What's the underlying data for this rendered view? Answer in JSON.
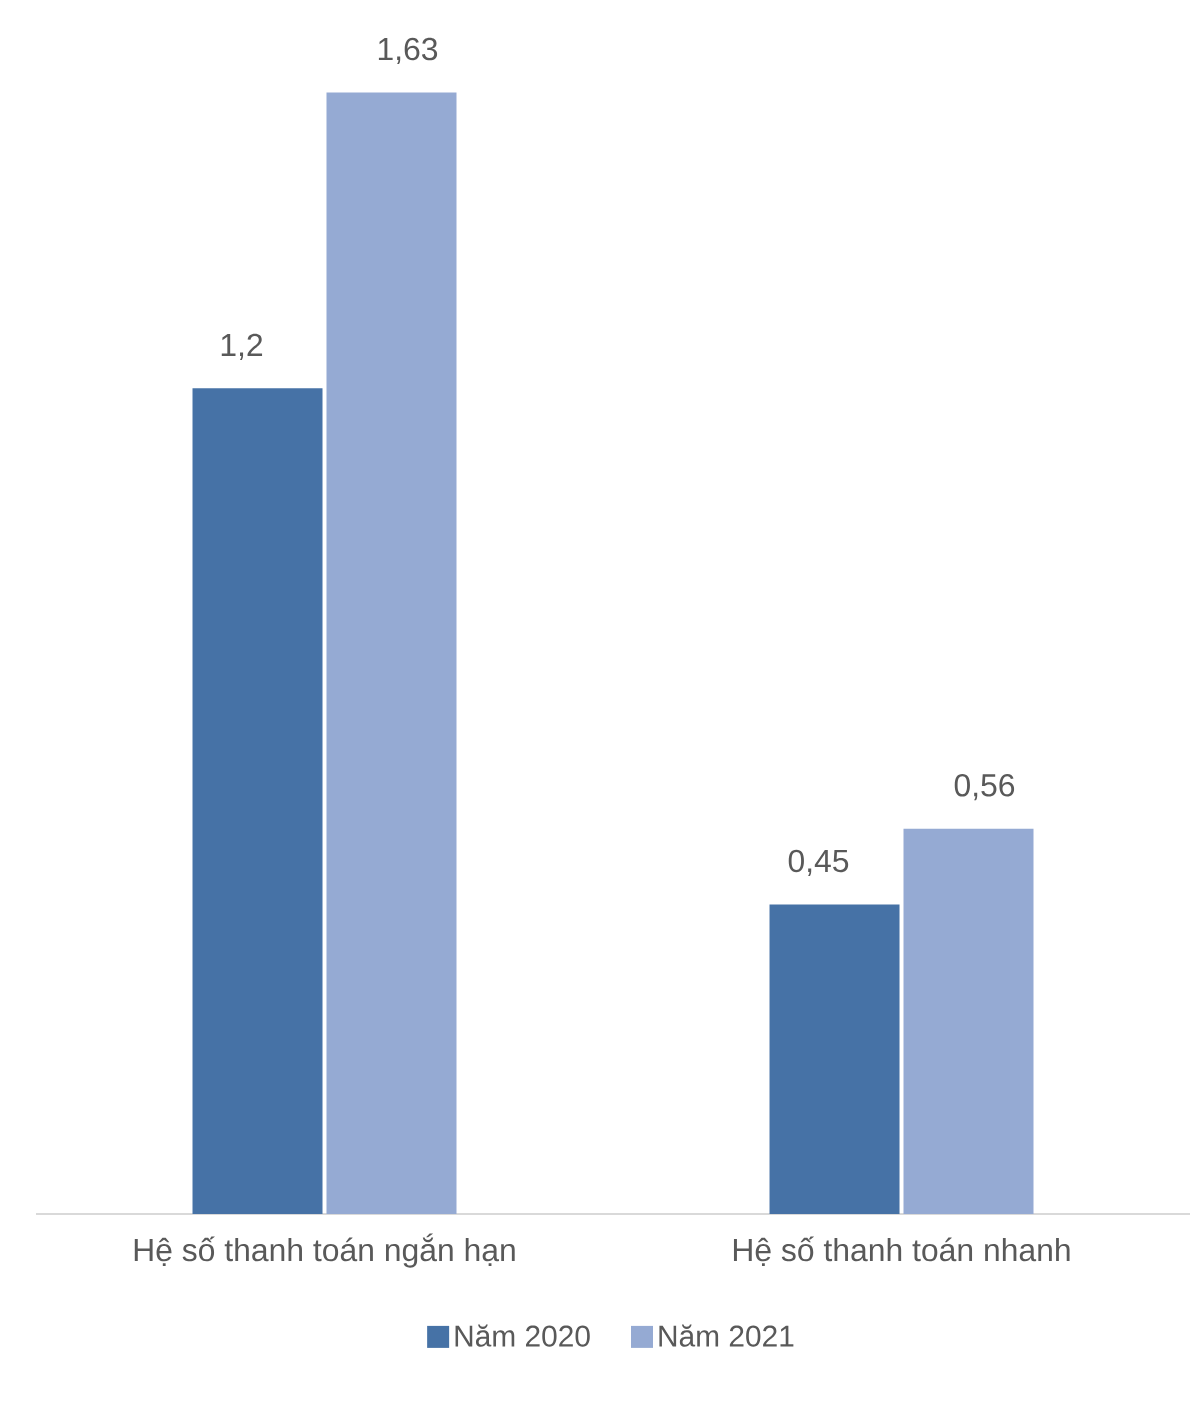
{
  "chart_data": {
    "type": "bar",
    "categories": [
      "Hệ số thanh toán ngắn hạn",
      "Hệ số thanh toán nhanh"
    ],
    "series": [
      {
        "name": "Năm 2020",
        "color": "#4672a6",
        "values": [
          1.2,
          0.45
        ],
        "value_labels": [
          "1,2",
          "0,45"
        ]
      },
      {
        "name": "Năm 2021",
        "color": "#95aad3",
        "values": [
          1.63,
          0.56
        ],
        "value_labels": [
          "1,63",
          "0,56"
        ]
      }
    ],
    "tick_labels": "x",
    "legend": "bottom"
  }
}
